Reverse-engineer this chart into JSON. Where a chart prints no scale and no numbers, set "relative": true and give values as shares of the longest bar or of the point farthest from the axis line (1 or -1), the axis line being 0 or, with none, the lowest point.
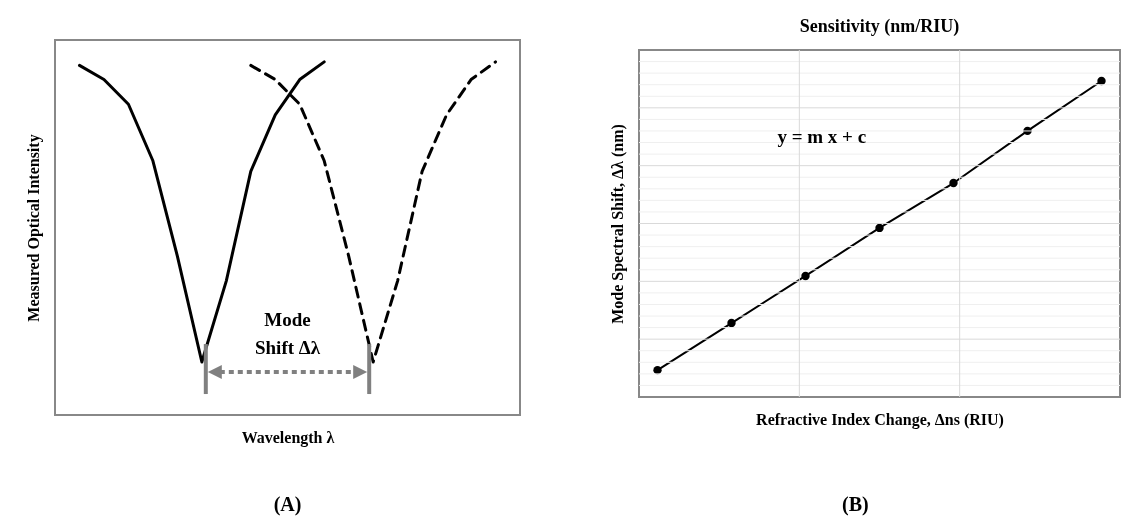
{
  "chart_data": [
    {
      "type": "line",
      "xlabel": "Wavelength λ",
      "ylabel": "Measured Optical Intensity",
      "annotations": [
        "Mode\nShift Δλ",
        "(A)"
      ],
      "relative": true,
      "tick_labels": false,
      "categories": [
        null,
        null,
        null,
        null,
        null,
        null,
        null,
        null,
        null,
        null,
        null,
        null,
        null,
        null,
        null,
        null,
        null,
        null
      ],
      "series": [
        {
          "color": "#000000",
          "line_style": "solid",
          "values": [
            0.99,
            0.95,
            0.88,
            0.72,
            0.45,
            0.15,
            0.38,
            0.69,
            0.85,
            0.95,
            1.0,
            null,
            null,
            null,
            null,
            null,
            null,
            null
          ]
        },
        {
          "color": "#000000",
          "line_style": "dashed",
          "values": [
            null,
            null,
            null,
            null,
            null,
            null,
            null,
            0.99,
            0.95,
            0.88,
            0.72,
            0.45,
            0.15,
            0.38,
            0.69,
            0.85,
            0.95,
            1.0
          ]
        }
      ]
    },
    {
      "type": "line",
      "title": "Sensitivity (nm/RIU)",
      "xlabel": "Refractive Index Change, Δns (RIU)",
      "ylabel": "Mode Spectral Shift, Δλ (nm)",
      "annotations": [
        "y = m x + c",
        "(B)"
      ],
      "relative": true,
      "tick_labels": false,
      "grid": true,
      "marker": "circle",
      "categories": [
        null,
        null,
        null,
        null,
        null,
        null,
        null
      ],
      "series": [
        {
          "color": "#000000",
          "values": [
            0.085,
            0.234,
            0.383,
            0.535,
            0.677,
            0.842,
            1.0
          ]
        }
      ]
    }
  ]
}
